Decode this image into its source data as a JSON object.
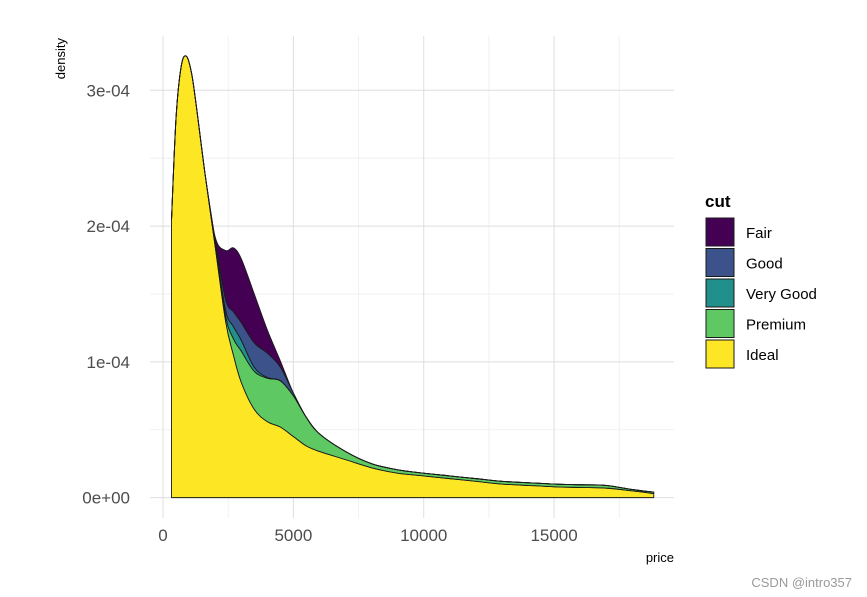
{
  "chart_data": {
    "type": "area",
    "stacked": true,
    "xlabel": "price",
    "ylabel": "density",
    "xlim": [
      -500,
      19600
    ],
    "ylim": [
      -1.5e-05,
      0.00034
    ],
    "x_ticks": [
      0,
      5000,
      10000,
      15000
    ],
    "x_tick_labels": [
      "0",
      "5000",
      "10000",
      "15000"
    ],
    "y_ticks": [
      0,
      0.0001,
      0.0002,
      0.0003
    ],
    "y_tick_labels": [
      "0e+00",
      "1e-04",
      "2e-04",
      "3e-04"
    ],
    "grid": true,
    "legend": {
      "title": "cut",
      "position": "right"
    },
    "x": [
      326,
      500,
      700,
      900,
      1100,
      1300,
      1600,
      2000,
      2400,
      2700,
      3000,
      3500,
      4000,
      4500,
      5000,
      5500,
      6000,
      7000,
      8000,
      9000,
      10000,
      11000,
      12000,
      13000,
      14000,
      15000,
      16000,
      17000,
      18000,
      18823
    ],
    "series": [
      {
        "name": "Ideal",
        "color": "#FDE725",
        "values": [
          0.000205,
          0.00028,
          0.000318,
          0.000325,
          0.000312,
          0.000285,
          0.00024,
          0.000185,
          0.00013,
          0.000105,
          8.5e-05,
          6.5e-05,
          5.6e-05,
          5.2e-05,
          4.5e-05,
          3.8e-05,
          3.4e-05,
          2.8e-05,
          2.2e-05,
          1.8e-05,
          1.6e-05,
          1.4e-05,
          1.2e-05,
          1e-05,
          9e-06,
          8e-06,
          7.5e-06,
          7e-06,
          5e-06,
          3e-06
        ]
      },
      {
        "name": "Premium",
        "color": "#5EC962",
        "values": [
          0,
          0,
          0,
          0,
          0,
          0,
          0,
          1e-06,
          4e-06,
          1.2e-05,
          2.3e-05,
          2.8e-05,
          3.2e-05,
          3.4e-05,
          3e-05,
          2.1e-05,
          1.3e-05,
          6e-06,
          3e-06,
          2.5e-06,
          2e-06,
          2e-06,
          2e-06,
          2e-06,
          2e-06,
          2e-06,
          2e-06,
          2e-06,
          1e-06,
          1e-06
        ]
      },
      {
        "name": "Very Good",
        "color": "#21908C",
        "values": [
          0,
          0,
          0,
          0,
          0,
          0,
          0,
          1e-06,
          4e-06,
          9e-06,
          8e-06,
          3e-06,
          5e-07,
          2e-07,
          0,
          0,
          0,
          0,
          0,
          0,
          0,
          0,
          0,
          0,
          0,
          0,
          0,
          0,
          0,
          0
        ]
      },
      {
        "name": "Good",
        "color": "#3B528B",
        "values": [
          0,
          0,
          0,
          0,
          0,
          0,
          0,
          3e-06,
          8e-06,
          1.1e-05,
          1.3e-05,
          1.8e-05,
          1.8e-05,
          1e-05,
          2e-06,
          0,
          0,
          0,
          0,
          0,
          0,
          0,
          0,
          0,
          0,
          0,
          0,
          0,
          0,
          0
        ]
      },
      {
        "name": "Fair",
        "color": "#440154",
        "values": [
          0,
          0,
          0,
          0,
          0,
          0,
          0,
          2e-06,
          3.6e-05,
          4.7e-05,
          4.7e-05,
          3.6e-05,
          1.7e-05,
          4.5e-06,
          0,
          0,
          0,
          0,
          0,
          0,
          0,
          0,
          0,
          0,
          0,
          0,
          0,
          0,
          0,
          0
        ]
      }
    ]
  },
  "legend_items": [
    {
      "label": "Fair",
      "color": "#440154"
    },
    {
      "label": "Good",
      "color": "#3B528B"
    },
    {
      "label": "Very Good",
      "color": "#21908C"
    },
    {
      "label": "Premium",
      "color": "#5EC962"
    },
    {
      "label": "Ideal",
      "color": "#FDE725"
    }
  ],
  "watermark": "CSDN @intro357"
}
